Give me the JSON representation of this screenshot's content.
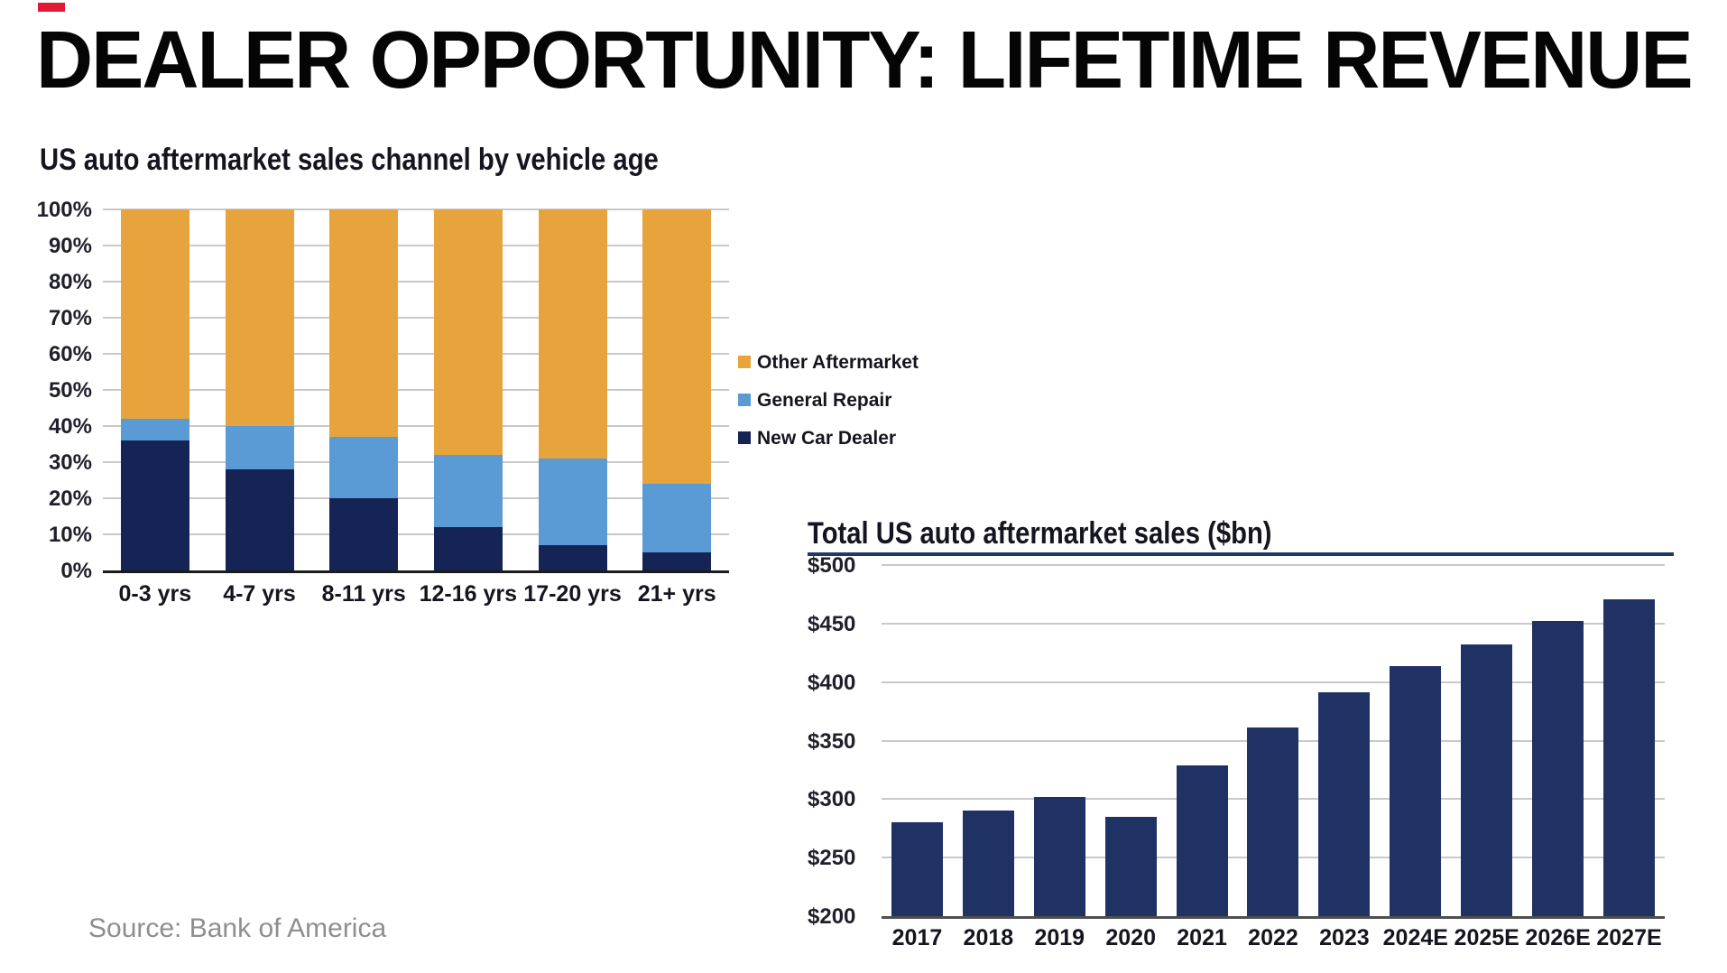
{
  "page": {
    "title": "DEALER OPPORTUNITY: LIFETIME REVENUE",
    "source": "Source: Bank of America",
    "accent_red": "#E31837"
  },
  "chart_data": [
    {
      "type": "bar",
      "stacked": true,
      "stacked_unit": "percent",
      "title": "US auto aftermarket sales channel by vehicle age",
      "categories": [
        "0-3 yrs",
        "4-7 yrs",
        "8-11 yrs",
        "12-16 yrs",
        "17-20 yrs",
        "21+ yrs"
      ],
      "series": [
        {
          "name": "New Car Dealer",
          "color": "#152355",
          "values": [
            36,
            28,
            20,
            12,
            7,
            5
          ]
        },
        {
          "name": "General Repair",
          "color": "#5B9BD5",
          "values": [
            6,
            12,
            17,
            20,
            24,
            19
          ]
        },
        {
          "name": "Other Aftermarket",
          "color": "#E8A43C",
          "values": [
            58,
            60,
            63,
            68,
            69,
            76
          ]
        }
      ],
      "ylim": [
        0,
        100
      ],
      "ytick_step": 10,
      "ytick_suffix": "%",
      "grid": true,
      "legend_position": "right",
      "legend_order_note": "legend listed top-to-bottom: Other Aftermarket, General Repair, New Car Dealer"
    },
    {
      "type": "bar",
      "title": "Total US auto aftermarket sales ($bn)",
      "categories": [
        "2017",
        "2018",
        "2019",
        "2020",
        "2021",
        "2022",
        "2023",
        "2024E",
        "2025E",
        "2026E",
        "2027E"
      ],
      "values": [
        280,
        290,
        302,
        285,
        329,
        361,
        391,
        414,
        432,
        452,
        471
      ],
      "bar_color": "#1F3263",
      "ylim": [
        200,
        500
      ],
      "ytick_step": 50,
      "ytick_prefix": "$",
      "grid": true
    }
  ]
}
